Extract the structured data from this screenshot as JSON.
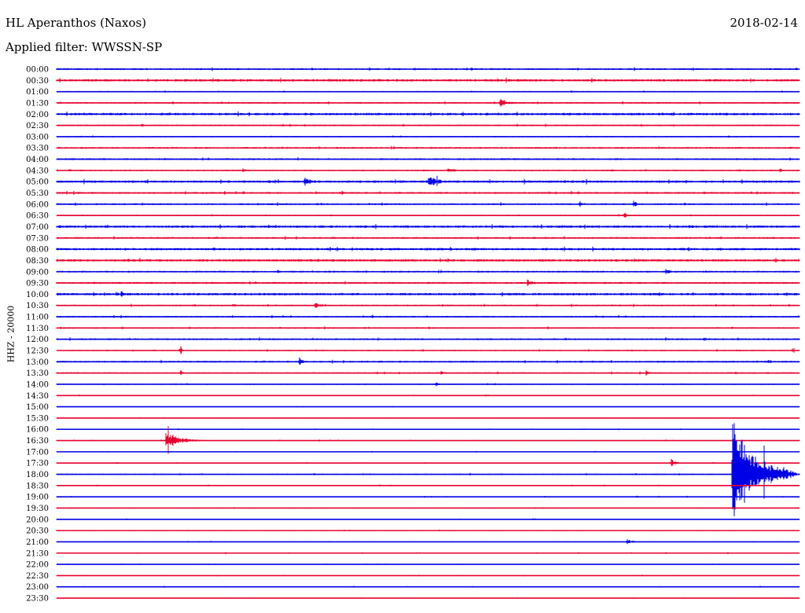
{
  "header": {
    "station": "HL Aperanthos (Naxos)",
    "date": "2018-02-14",
    "filter": "Applied filter: WWSSN-SP",
    "channel": "HHZ - 20000"
  },
  "colors": {
    "blue": "#0000e6",
    "red": "#e8002e"
  },
  "chart_data": {
    "type": "line",
    "title": "HL Aperanthos (Naxos)",
    "subtitle": "Applied filter: WWSSN-SP",
    "ylabel": "HHZ - 20000",
    "rows": [
      "00:00",
      "00:30",
      "01:00",
      "01:30",
      "02:00",
      "02:30",
      "03:00",
      "03:30",
      "04:00",
      "04:30",
      "05:00",
      "05:30",
      "06:00",
      "06:30",
      "07:00",
      "07:30",
      "08:00",
      "08:30",
      "09:00",
      "09:30",
      "10:00",
      "10:30",
      "11:00",
      "11:30",
      "12:00",
      "12:30",
      "13:00",
      "13:30",
      "14:00",
      "14:30",
      "15:00",
      "15:30",
      "16:00",
      "16:30",
      "17:00",
      "17:30",
      "18:00",
      "18:30",
      "19:00",
      "19:30",
      "20:00",
      "20:30",
      "21:00",
      "21:30",
      "22:00",
      "22:30",
      "23:00",
      "23:30"
    ],
    "row_colors": [
      "blue",
      "red"
    ],
    "x_range_minutes": [
      0,
      30
    ],
    "noise_level": [
      1.2,
      1.6,
      0.8,
      1.0,
      1.6,
      1.0,
      0.8,
      1.2,
      1.2,
      1.0,
      1.6,
      1.2,
      1.2,
      0.8,
      1.6,
      1.2,
      1.6,
      1.6,
      1.2,
      1.2,
      1.6,
      1.0,
      1.0,
      1.0,
      1.2,
      0.8,
      1.2,
      1.0,
      0.8,
      0.6,
      0.5,
      0.5,
      0.5,
      0.6,
      0.5,
      0.6,
      0.8,
      0.6,
      0.6,
      0.6,
      0.6,
      0.6,
      0.6,
      0.6,
      0.4,
      0.5,
      0.6,
      0.4
    ],
    "events": [
      {
        "row": "01:30",
        "minute": 17.9,
        "amplitude": 6,
        "duration": 1.0
      },
      {
        "row": "02:30",
        "minute": 3.4,
        "amplitude": 3,
        "duration": 0.5
      },
      {
        "row": "03:30",
        "minute": 14.5,
        "amplitude": 2,
        "duration": 0.5
      },
      {
        "row": "04:30",
        "minute": 7.5,
        "amplitude": 3,
        "duration": 0.6
      },
      {
        "row": "04:30",
        "minute": 15.8,
        "amplitude": 5,
        "duration": 0.8
      },
      {
        "row": "04:30",
        "minute": 29.2,
        "amplitude": 3,
        "duration": 0.5
      },
      {
        "row": "05:00",
        "minute": 10.0,
        "amplitude": 6,
        "duration": 1.0
      },
      {
        "row": "05:00",
        "minute": 15.0,
        "amplitude": 8,
        "duration": 1.3
      },
      {
        "row": "05:30",
        "minute": 11.5,
        "amplitude": 4,
        "duration": 0.3
      },
      {
        "row": "06:00",
        "minute": 21.1,
        "amplitude": 5,
        "duration": 0.6
      },
      {
        "row": "06:00",
        "minute": 23.3,
        "amplitude": 6,
        "duration": 0.4
      },
      {
        "row": "06:30",
        "minute": 22.9,
        "amplitude": 5,
        "duration": 0.5
      },
      {
        "row": "08:00",
        "minute": 6.3,
        "amplitude": 3,
        "duration": 0.6
      },
      {
        "row": "09:00",
        "minute": 8.9,
        "amplitude": 4,
        "duration": 0.4
      },
      {
        "row": "09:00",
        "minute": 24.6,
        "amplitude": 4,
        "duration": 0.6
      },
      {
        "row": "09:30",
        "minute": 19.0,
        "amplitude": 5,
        "duration": 0.8
      },
      {
        "row": "10:00",
        "minute": 2.6,
        "amplitude": 7,
        "duration": 0.3
      },
      {
        "row": "10:00",
        "minute": 18.0,
        "amplitude": 3,
        "duration": 0.6
      },
      {
        "row": "10:30",
        "minute": 7.1,
        "amplitude": 3,
        "duration": 0.6
      },
      {
        "row": "10:30",
        "minute": 10.4,
        "amplitude": 4,
        "duration": 0.8
      },
      {
        "row": "11:00",
        "minute": 12.7,
        "amplitude": 5,
        "duration": 0.3
      },
      {
        "row": "11:30",
        "minute": 9.0,
        "amplitude": 3,
        "duration": 0.3
      },
      {
        "row": "12:00",
        "minute": 26.1,
        "amplitude": 3,
        "duration": 1.0
      },
      {
        "row": "12:30",
        "minute": 5.0,
        "amplitude": 8,
        "duration": 0.2
      },
      {
        "row": "12:30",
        "minute": 29.7,
        "amplitude": 5,
        "duration": 0.2
      },
      {
        "row": "13:00",
        "minute": 9.8,
        "amplitude": 7,
        "duration": 0.4
      },
      {
        "row": "13:00",
        "minute": 28.8,
        "amplitude": 7,
        "duration": 0.2
      },
      {
        "row": "13:30",
        "minute": 5.0,
        "amplitude": 5,
        "duration": 0.3
      },
      {
        "row": "13:30",
        "minute": 23.8,
        "amplitude": 6,
        "duration": 0.3
      },
      {
        "row": "13:30",
        "minute": 15.5,
        "amplitude": 3,
        "duration": 0.5
      },
      {
        "row": "14:00",
        "minute": 15.3,
        "amplitude": 3,
        "duration": 0.6
      },
      {
        "row": "16:30",
        "minute": 4.4,
        "amplitude": 10,
        "duration": 1.8
      },
      {
        "row": "17:30",
        "minute": 24.8,
        "amplitude": 6,
        "duration": 0.6
      },
      {
        "row": "18:00",
        "minute": 27.3,
        "amplitude": 75,
        "duration": 2.6
      },
      {
        "row": "19:00",
        "minute": 23.4,
        "amplitude": 3,
        "duration": 0.2
      },
      {
        "row": "21:00",
        "minute": 23.0,
        "amplitude": 4,
        "duration": 0.8
      }
    ]
  }
}
